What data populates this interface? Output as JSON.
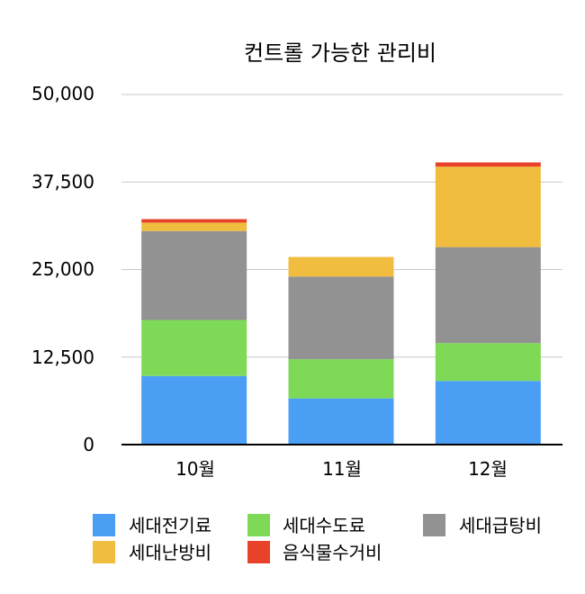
{
  "chart_data": {
    "type": "bar",
    "stacked": true,
    "title": "컨트롤 가능한 관리비",
    "categories": [
      "10월",
      "11월",
      "12월"
    ],
    "ylim": [
      0,
      50000
    ],
    "yticks": [
      "0",
      "12,500",
      "25,000",
      "37,500",
      "50,000"
    ],
    "grid": true,
    "legend_position": "bottom",
    "series": [
      {
        "name": "세대전기료",
        "color": "#4a9ff5",
        "values": [
          9800,
          6600,
          9100
        ]
      },
      {
        "name": "세대수도료",
        "color": "#7ed957",
        "values": [
          8000,
          5600,
          5400
        ]
      },
      {
        "name": "세대급탕비",
        "color": "#929292",
        "values": [
          12700,
          11800,
          13700
        ]
      },
      {
        "name": "세대난방비",
        "color": "#f0bd3e",
        "values": [
          1200,
          2800,
          11500
        ]
      },
      {
        "name": "음식물수거비",
        "color": "#e8432a",
        "values": [
          500,
          0,
          600
        ]
      }
    ]
  }
}
